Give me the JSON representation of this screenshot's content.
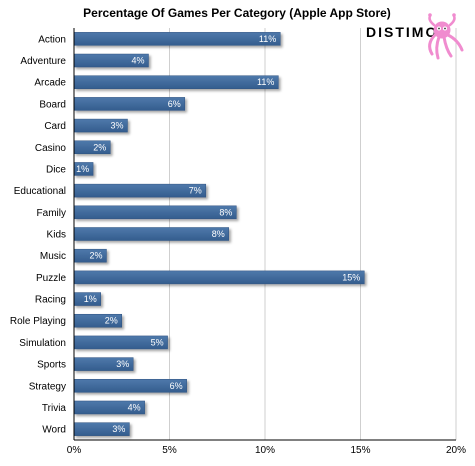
{
  "brand": {
    "name": "DISTIMO",
    "accent_color": "#f08ccf"
  },
  "colors": {
    "bar": "#3e6798",
    "bar_edge": "#2f5280",
    "grid": "#cfcfcf",
    "axis": "#000000",
    "text": "#000000"
  },
  "chart_data": {
    "type": "bar",
    "orientation": "horizontal",
    "title": "Percentage Of Games Per Category (Apple App Store)",
    "xlabel": "",
    "ylabel": "",
    "xlim": [
      0,
      20
    ],
    "x_ticks": [
      0,
      5,
      10,
      15,
      20
    ],
    "x_tick_labels": [
      "0%",
      "5%",
      "10%",
      "15%",
      "20%"
    ],
    "grid": true,
    "categories": [
      "Action",
      "Adventure",
      "Arcade",
      "Board",
      "Card",
      "Casino",
      "Dice",
      "Educational",
      "Family",
      "Kids",
      "Music",
      "Puzzle",
      "Racing",
      "Role Playing",
      "Simulation",
      "Sports",
      "Strategy",
      "Trivia",
      "Word"
    ],
    "values": [
      10.8,
      3.9,
      10.7,
      5.8,
      2.8,
      1.9,
      1.0,
      6.9,
      8.5,
      8.1,
      1.7,
      15.2,
      1.4,
      2.5,
      4.9,
      3.1,
      5.9,
      3.7,
      2.9
    ],
    "value_labels": [
      "11%",
      "4%",
      "11%",
      "6%",
      "3%",
      "2%",
      "1%",
      "7%",
      "8%",
      "8%",
      "2%",
      "15%",
      "1%",
      "2%",
      "5%",
      "3%",
      "6%",
      "4%",
      "3%"
    ]
  }
}
